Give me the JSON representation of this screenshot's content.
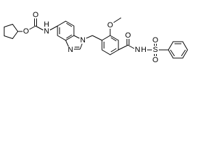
{
  "atoms": [
    "O",
    "O",
    "N",
    "H",
    "N",
    "N",
    "O",
    "O",
    "N",
    "H",
    "S",
    "O",
    "O"
  ]
}
